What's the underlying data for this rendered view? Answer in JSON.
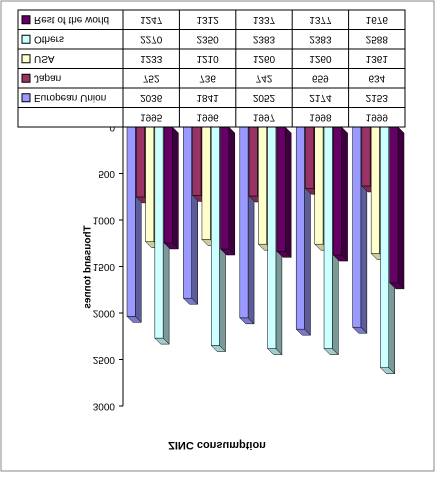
{
  "chart_data": {
    "type": "bar",
    "title": "ZINC consumption",
    "y_label": "Thousand tonnes",
    "categories": [
      "1995",
      "1996",
      "1997",
      "1998",
      "1999"
    ],
    "series": [
      {
        "name": "European Union",
        "color": "#9999ff",
        "values": [
          2036,
          1841,
          2052,
          2174,
          2153
        ]
      },
      {
        "name": "Japan",
        "color": "#993366",
        "values": [
          752,
          736,
          742,
          659,
          634
        ]
      },
      {
        "name": "USA",
        "color": "#ffffcc",
        "values": [
          1233,
          1210,
          1260,
          1260,
          1361
        ]
      },
      {
        "name": "Others",
        "color": "#ccffff",
        "values": [
          2270,
          2350,
          2383,
          2383,
          2588
        ]
      },
      {
        "name": "Rest of the world",
        "color": "#660066",
        "values": [
          1247,
          1312,
          1337,
          1377,
          1676
        ]
      }
    ],
    "ylim": [
      0,
      3000
    ],
    "yticks": [
      0,
      500,
      1000,
      1500,
      2000,
      2500,
      3000
    ],
    "grid": false
  }
}
